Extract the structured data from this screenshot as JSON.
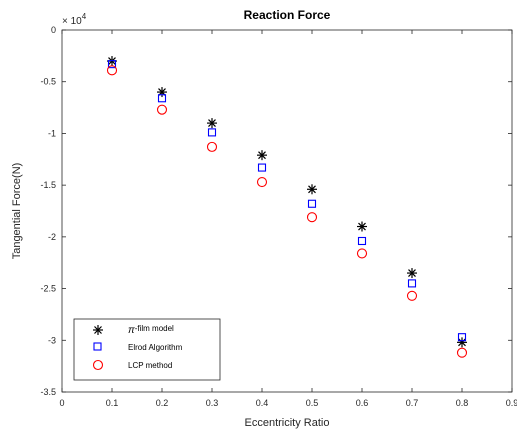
{
  "chart_data": {
    "type": "scatter",
    "title": "Reaction Force",
    "xlabel": "Eccentricity Ratio",
    "ylabel": "Tangential Force(N)",
    "y_exponent_label": "× 10",
    "y_exponent_power": "4",
    "xlim": [
      0,
      0.9
    ],
    "ylim": [
      -3.5,
      0
    ],
    "xticks": [
      0,
      0.1,
      0.2,
      0.3,
      0.4,
      0.5,
      0.6,
      0.7,
      0.8,
      0.9
    ],
    "xtick_labels": [
      "0",
      "0.1",
      "0.2",
      "0.3",
      "0.4",
      "0.5",
      "0.6",
      "0.7",
      "0.8",
      "0.9"
    ],
    "yticks": [
      0,
      -0.5,
      -1,
      -1.5,
      -2,
      -2.5,
      -3,
      -3.5
    ],
    "ytick_labels": [
      "0",
      "-0.5",
      "-1",
      "-1.5",
      "-2",
      "-2.5",
      "-3",
      "-3.5"
    ],
    "grid": false,
    "legend_position": "bottom-left",
    "x": [
      0.1,
      0.2,
      0.3,
      0.4,
      0.5,
      0.6,
      0.7,
      0.8
    ],
    "series": [
      {
        "name_prefix": "π",
        "name_rest": "-film model",
        "marker": "asterisk",
        "color": "#000000",
        "values": [
          -0.3,
          -0.6,
          -0.9,
          -1.21,
          -1.54,
          -1.9,
          -2.35,
          -3.02
        ]
      },
      {
        "name": "Elrod Algorithm",
        "marker": "square",
        "color": "#0000ff",
        "values": [
          -0.33,
          -0.66,
          -0.99,
          -1.33,
          -1.68,
          -2.04,
          -2.45,
          -2.97
        ]
      },
      {
        "name": "LCP method",
        "marker": "circle",
        "color": "#ff0000",
        "values": [
          -0.39,
          -0.77,
          -1.13,
          -1.47,
          -1.81,
          -2.16,
          -2.57,
          -3.12
        ]
      }
    ]
  }
}
